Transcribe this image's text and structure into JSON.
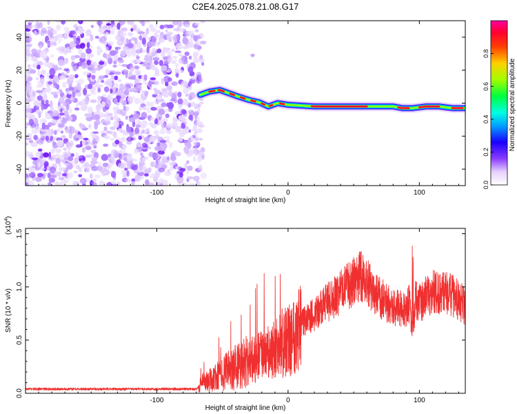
{
  "figure": {
    "title": "C2E4.2025.078.21.08.G17"
  },
  "chart_data": [
    {
      "id": "spectrogram",
      "type": "heatmap",
      "xlabel": "Height of straight line (km)",
      "ylabel": "Frequency (Hz)",
      "xlim": [
        -200,
        135
      ],
      "ylim": [
        -50,
        50
      ],
      "x_ticks": [
        -100,
        0,
        100
      ],
      "x_tick_labels": [
        "-100",
        "0",
        "100"
      ],
      "y_ticks": [
        -40,
        -20,
        0,
        20,
        40
      ],
      "y_tick_labels": [
        "-40",
        "-20",
        "0",
        "20",
        "40"
      ],
      "noise_region_x": [
        -200,
        -65
      ],
      "signal_track": {
        "x": [
          -67,
          -60,
          -52,
          -45,
          -38,
          -30,
          -22,
          -15,
          -8,
          0,
          10,
          20,
          40,
          60,
          80,
          87,
          95,
          105,
          115,
          125,
          135
        ],
        "y": [
          5,
          7,
          8,
          6,
          4,
          2,
          0.5,
          -2,
          0,
          -1,
          -1.5,
          -2,
          -2,
          -2,
          -2,
          -3,
          -3,
          -2,
          -2,
          -3,
          -3
        ]
      },
      "colorbar": {
        "label": "Normalized spectral amplitude",
        "range": [
          0,
          1
        ],
        "ticks": [
          0.0,
          0.2,
          0.4,
          0.6,
          0.8
        ],
        "tick_labels": [
          "0.0",
          "0.2",
          "0.4",
          "0.6",
          "0.8"
        ]
      }
    },
    {
      "id": "snr",
      "type": "line",
      "xlabel": "Height of straight line (km)",
      "ylabel": "SNR (10 * v/v)",
      "scale_label": "(x10",
      "scale_exp": "4",
      "scale_close": ")",
      "xlim": [
        -200,
        135
      ],
      "ylim": [
        0,
        1.55
      ],
      "x_ticks": [
        -100,
        0,
        100
      ],
      "x_tick_labels": [
        "-100",
        "0",
        "100"
      ],
      "y_ticks": [
        0.0,
        0.5,
        1.0,
        1.5
      ],
      "y_tick_labels": [
        "0.0",
        "0.5",
        "1.0",
        "1.5"
      ],
      "series": [
        {
          "color": "#f03030",
          "x": [
            -200,
            -150,
            -100,
            -70,
            -65,
            -60,
            -50,
            -40,
            -30,
            -20,
            -10,
            0,
            10,
            20,
            30,
            40,
            50,
            55,
            60,
            65,
            70,
            80,
            90,
            93,
            95,
            97,
            100,
            110,
            120,
            130,
            135
          ],
          "y": [
            0.04,
            0.04,
            0.04,
            0.04,
            0.1,
            0.12,
            0.18,
            0.25,
            0.3,
            0.35,
            0.4,
            0.5,
            0.65,
            0.75,
            0.85,
            0.95,
            1.05,
            1.1,
            1.05,
            0.95,
            0.9,
            0.8,
            0.8,
            0.85,
            0.45,
            0.9,
            0.85,
            0.95,
            0.95,
            0.88,
            0.82
          ]
        }
      ]
    }
  ]
}
